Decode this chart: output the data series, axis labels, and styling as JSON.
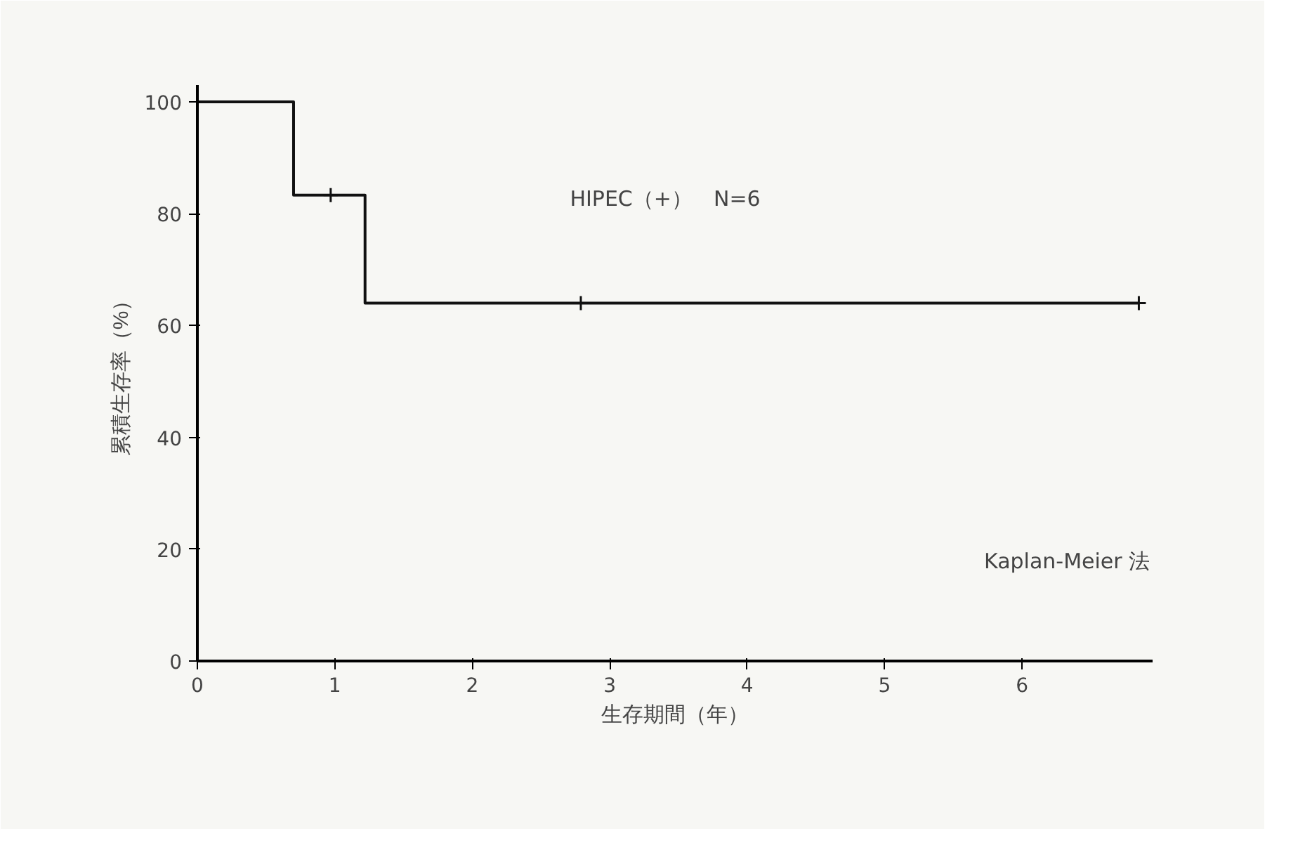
{
  "chart_data": {
    "type": "step",
    "xlabel": "生存期間（年）",
    "ylabel": "累積生存率（%）",
    "xlim": [
      0,
      6.95
    ],
    "ylim": [
      0,
      103
    ],
    "xticks": [
      0,
      1,
      2,
      3,
      4,
      5,
      6
    ],
    "yticks": [
      0,
      20,
      40,
      60,
      80,
      100
    ],
    "grid": false,
    "series": [
      {
        "color": "#111111",
        "x": [
          0,
          0.7,
          1.22,
          6.85
        ],
        "values": [
          100,
          83.3,
          64,
          64
        ],
        "marker": "none"
      },
      {
        "type": "scatter",
        "color": "#111111",
        "x": [
          0.97,
          2.79,
          6.85
        ],
        "values": [
          83.3,
          64,
          64
        ],
        "marker": "cross"
      }
    ],
    "annotations": [
      "HIPEC（+）　N=6",
      "Kaplan-Meier 法"
    ]
  }
}
